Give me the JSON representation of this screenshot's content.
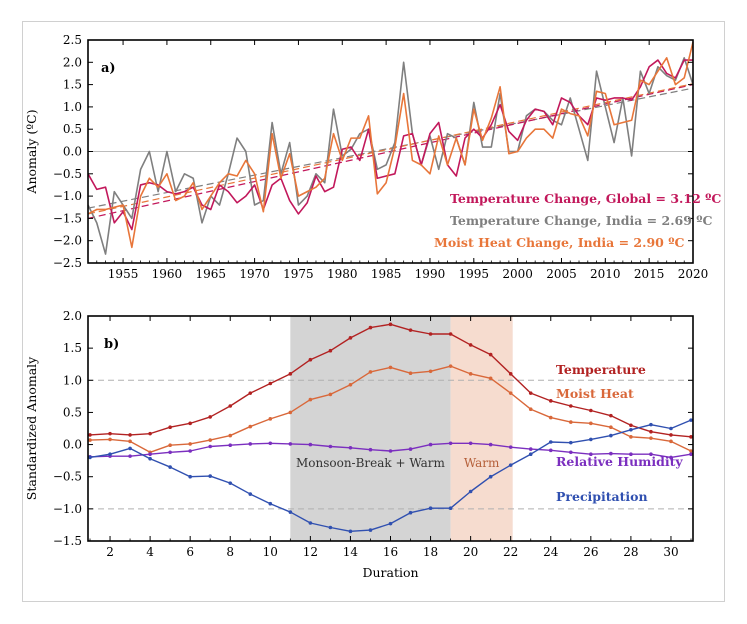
{
  "chart_data": [
    {
      "type": "line",
      "panel_label": "a)",
      "ylabel": "Anomaly (ºC)",
      "xlabel": "",
      "xlim": [
        1951,
        2020
      ],
      "ylim": [
        -2.5,
        2.5
      ],
      "xticks": [
        1955,
        1960,
        1965,
        1970,
        1975,
        1980,
        1985,
        1990,
        1995,
        2000,
        2005,
        2010,
        2015,
        2020
      ],
      "yticks": [
        -2.5,
        -2.0,
        -1.5,
        -1.0,
        -0.5,
        0.0,
        0.5,
        1.0,
        1.5,
        2.0,
        2.5
      ],
      "ytick_labels": [
        "−2.5",
        "−2.0",
        "−1.5",
        "−1.0",
        "−0.5",
        "0.0",
        "0.5",
        "1.0",
        "1.5",
        "2.0",
        "2.5"
      ],
      "zero_line": true,
      "x": [
        1951,
        1952,
        1953,
        1954,
        1955,
        1956,
        1957,
        1958,
        1959,
        1960,
        1961,
        1962,
        1963,
        1964,
        1965,
        1966,
        1967,
        1968,
        1969,
        1970,
        1971,
        1972,
        1973,
        1974,
        1975,
        1976,
        1977,
        1978,
        1979,
        1980,
        1981,
        1982,
        1983,
        1984,
        1985,
        1986,
        1987,
        1988,
        1989,
        1990,
        1991,
        1992,
        1993,
        1994,
        1995,
        1996,
        1997,
        1998,
        1999,
        2000,
        2001,
        2002,
        2003,
        2004,
        2005,
        2006,
        2007,
        2008,
        2009,
        2010,
        2011,
        2012,
        2013,
        2014,
        2015,
        2016,
        2017,
        2018,
        2019,
        2020
      ],
      "series": [
        {
          "name": "Temperature Change, India",
          "legend": "Temperature Change, India = 2.69 ºC",
          "color": "#7f7f7f",
          "values": [
            -1.2,
            -1.6,
            -2.3,
            -0.9,
            -1.2,
            -1.5,
            -0.4,
            0.0,
            -0.9,
            0.0,
            -0.9,
            -0.5,
            -0.6,
            -1.6,
            -1.0,
            -1.2,
            -0.5,
            0.3,
            0.0,
            -1.2,
            -1.1,
            0.65,
            -0.5,
            0.2,
            -1.2,
            -1.0,
            -0.5,
            -0.7,
            0.95,
            -0.1,
            0.05,
            0.4,
            0.5,
            -0.4,
            -0.3,
            0.2,
            2.0,
            0.4,
            -0.3,
            0.35,
            -0.4,
            0.4,
            0.3,
            -0.3,
            1.1,
            0.1,
            0.1,
            1.3,
            0.0,
            0.0,
            0.8,
            0.95,
            0.9,
            0.7,
            0.6,
            1.2,
            0.5,
            -0.2,
            1.8,
            1.0,
            0.2,
            1.2,
            -0.1,
            1.8,
            1.3,
            1.9,
            1.7,
            1.6,
            2.1,
            1.5
          ],
          "trend": [
            -1.27,
            1.42
          ]
        },
        {
          "name": "Temperature Change, Global",
          "legend": "Temperature Change, Global = 3.12 ºC",
          "color": "#c2185b",
          "values": [
            -0.5,
            -0.85,
            -0.8,
            -1.6,
            -1.35,
            -1.75,
            -0.75,
            -0.7,
            -0.75,
            -0.9,
            -0.95,
            -0.9,
            -0.8,
            -1.2,
            -1.3,
            -0.75,
            -0.9,
            -1.15,
            -1.0,
            -0.75,
            -1.3,
            -0.75,
            -0.6,
            -1.1,
            -1.4,
            -1.15,
            -0.55,
            -0.9,
            -0.8,
            0.05,
            0.1,
            -0.2,
            0.5,
            -0.6,
            -0.55,
            -0.5,
            0.35,
            0.4,
            -0.3,
            0.4,
            0.65,
            -0.3,
            -0.55,
            0.3,
            0.5,
            0.3,
            0.6,
            1.05,
            0.45,
            0.25,
            0.7,
            0.95,
            0.9,
            0.6,
            1.2,
            1.1,
            0.8,
            0.6,
            1.2,
            1.15,
            1.2,
            1.2,
            1.15,
            1.45,
            1.9,
            2.05,
            1.75,
            1.65,
            2.05,
            2.05
          ],
          "trend": [
            -1.5,
            1.5
          ]
        },
        {
          "name": "Moist Heat Change, India",
          "legend": "Moist Heat Change, India = 2.90 ºC",
          "color": "#e8763a",
          "values": [
            -1.4,
            -1.3,
            -1.3,
            -1.25,
            -1.2,
            -2.15,
            -1.0,
            -0.6,
            -0.8,
            -0.5,
            -1.1,
            -1.0,
            -0.7,
            -1.3,
            -1.0,
            -0.7,
            -0.5,
            -0.55,
            -0.2,
            -0.5,
            -1.35,
            0.4,
            -0.6,
            -0.05,
            -1.0,
            -0.9,
            -0.8,
            -0.6,
            0.4,
            -0.2,
            0.3,
            0.3,
            0.8,
            -0.95,
            -0.7,
            0.1,
            1.3,
            -0.2,
            -0.3,
            -0.5,
            0.35,
            -0.3,
            0.3,
            -0.3,
            0.95,
            0.25,
            0.75,
            1.45,
            -0.05,
            0.0,
            0.3,
            0.5,
            0.5,
            0.3,
            0.95,
            0.85,
            0.8,
            0.35,
            1.35,
            1.3,
            0.6,
            0.65,
            0.7,
            1.6,
            1.5,
            1.8,
            2.1,
            1.5,
            1.65,
            2.45
          ],
          "trend": [
            -1.4,
            1.52
          ]
        }
      ]
    },
    {
      "type": "line",
      "panel_label": "b)",
      "ylabel": "Standardized Anomaly",
      "xlabel": "Duration",
      "xlim": [
        0.9,
        31.1
      ],
      "ylim": [
        -1.5,
        2.0
      ],
      "xticks": [
        2,
        4,
        6,
        8,
        10,
        12,
        14,
        16,
        18,
        20,
        22,
        24,
        26,
        28,
        30
      ],
      "yticks": [
        -1.5,
        -1.0,
        -0.5,
        0.0,
        0.5,
        1.0,
        1.5,
        2.0
      ],
      "ytick_labels": [
        "−1.5",
        "−1.0",
        "−0.5",
        "0.0",
        "0.5",
        "1.0",
        "1.5",
        "2.0"
      ],
      "dashed_lines": [
        1.0,
        -1.0
      ],
      "shaded_regions": [
        {
          "label": "Monsoon-Break + Warm",
          "x_start": 11,
          "x_end": 19,
          "color": "#d4d4d4"
        },
        {
          "label": "Warm",
          "x_start": 19,
          "x_end": 22.1,
          "color": "#f6dccf"
        }
      ],
      "x": [
        1,
        2,
        3,
        4,
        5,
        6,
        7,
        8,
        9,
        10,
        11,
        12,
        13,
        14,
        15,
        16,
        17,
        18,
        19,
        20,
        21,
        22,
        23,
        24,
        25,
        26,
        27,
        28,
        29,
        30,
        31
      ],
      "series": [
        {
          "name": "Temperature",
          "color": "#b22222",
          "values": [
            0.15,
            0.17,
            0.15,
            0.17,
            0.27,
            0.33,
            0.43,
            0.6,
            0.8,
            0.95,
            1.1,
            1.32,
            1.46,
            1.66,
            1.82,
            1.87,
            1.78,
            1.72,
            1.72,
            1.55,
            1.4,
            1.1,
            0.8,
            0.68,
            0.6,
            0.53,
            0.45,
            0.3,
            0.2,
            0.15,
            0.12
          ]
        },
        {
          "name": "Moist Heat",
          "color": "#d9683a",
          "values": [
            0.07,
            0.08,
            0.05,
            -0.12,
            -0.01,
            0.01,
            0.07,
            0.14,
            0.28,
            0.4,
            0.5,
            0.7,
            0.78,
            0.93,
            1.13,
            1.2,
            1.11,
            1.14,
            1.22,
            1.1,
            1.03,
            0.8,
            0.55,
            0.42,
            0.35,
            0.33,
            0.27,
            0.12,
            0.1,
            0.05,
            -0.1
          ]
        },
        {
          "name": "Relative Humidity",
          "color": "#7b2fbf",
          "values": [
            -0.19,
            -0.18,
            -0.18,
            -0.15,
            -0.12,
            -0.1,
            -0.03,
            -0.01,
            0.01,
            0.02,
            0.01,
            0.0,
            -0.03,
            -0.05,
            -0.08,
            -0.1,
            -0.07,
            0.0,
            0.02,
            0.02,
            0.0,
            -0.04,
            -0.07,
            -0.09,
            -0.12,
            -0.15,
            -0.14,
            -0.15,
            -0.15,
            -0.2,
            -0.15
          ]
        },
        {
          "name": "Precipitation",
          "color": "#3050b0",
          "values": [
            -0.2,
            -0.15,
            -0.06,
            -0.22,
            -0.35,
            -0.5,
            -0.49,
            -0.6,
            -0.77,
            -0.92,
            -1.05,
            -1.22,
            -1.29,
            -1.35,
            -1.33,
            -1.23,
            -1.06,
            -0.99,
            -0.99,
            -0.73,
            -0.5,
            -0.32,
            -0.15,
            0.04,
            0.03,
            0.08,
            0.14,
            0.23,
            0.31,
            0.25,
            0.38
          ]
        }
      ]
    }
  ]
}
